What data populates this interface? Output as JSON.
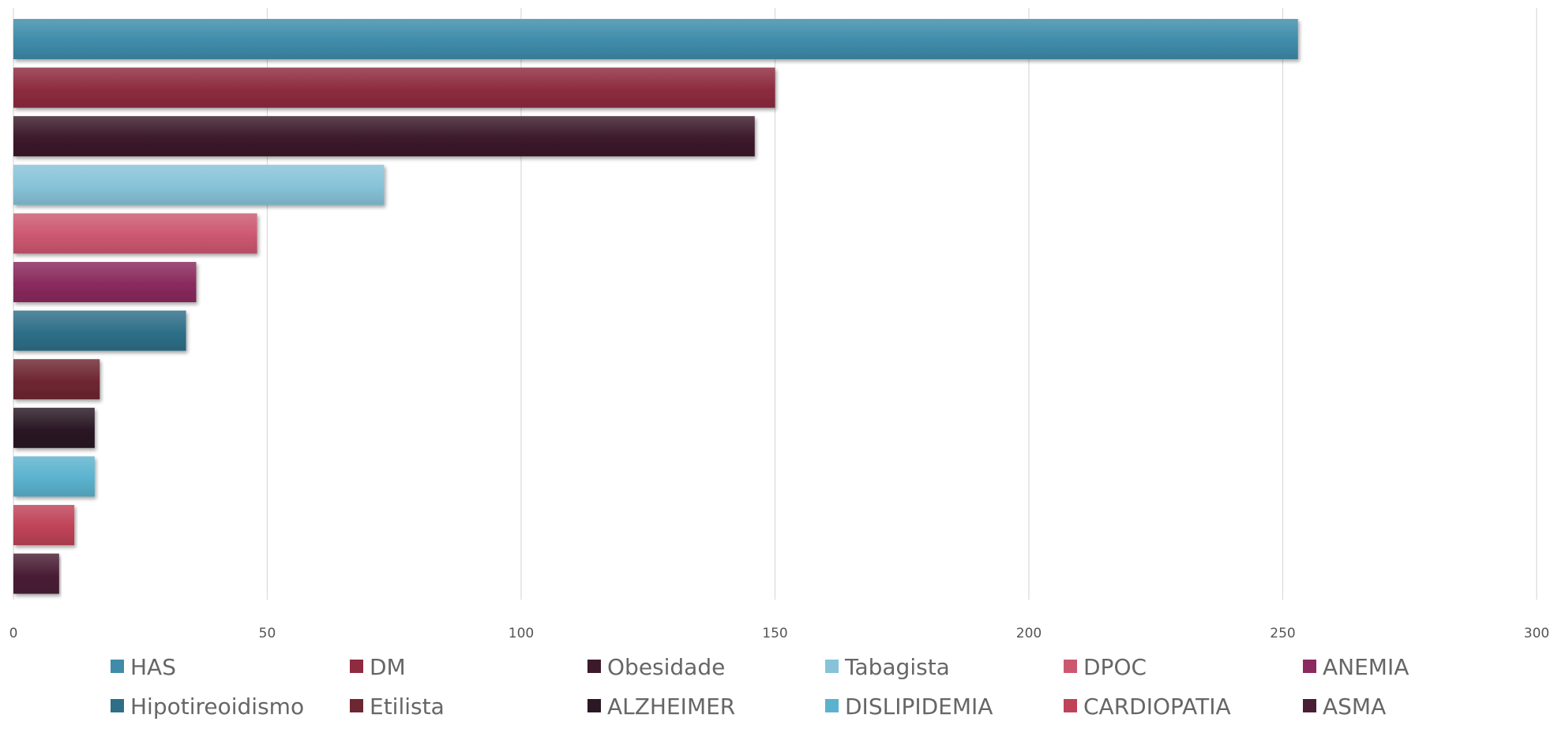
{
  "chart_data": {
    "type": "bar",
    "orientation": "horizontal",
    "title": "",
    "xlabel": "",
    "ylabel": "",
    "xlim": [
      0,
      300
    ],
    "xticks": [
      0,
      50,
      100,
      150,
      200,
      250,
      300
    ],
    "grid": "vertical",
    "legend": "bottom",
    "series": [
      {
        "name": "HAS",
        "value": 253,
        "color": "#3E8CAA"
      },
      {
        "name": "DM",
        "value": 150,
        "color": "#8E2B3F"
      },
      {
        "name": "Obesidade",
        "value": 146,
        "color": "#3C1A2B"
      },
      {
        "name": "Tabagista",
        "value": 73,
        "color": "#86C3D8"
      },
      {
        "name": "DPOC",
        "value": 48,
        "color": "#CC5870"
      },
      {
        "name": "ANEMIA",
        "value": 36,
        "color": "#8A2A5E"
      },
      {
        "name": "Hipotireoidismo",
        "value": 34,
        "color": "#2E6F88"
      },
      {
        "name": "Etilista",
        "value": 17,
        "color": "#6E2732"
      },
      {
        "name": "ALZHEIMER",
        "value": 16,
        "color": "#2A1825"
      },
      {
        "name": "DISLIPIDEMIA",
        "value": 16,
        "color": "#5BB2CE"
      },
      {
        "name": "CARDIOPATIA",
        "value": 12,
        "color": "#BF4358"
      },
      {
        "name": "ASMA",
        "value": 9,
        "color": "#4A1E35"
      }
    ]
  }
}
